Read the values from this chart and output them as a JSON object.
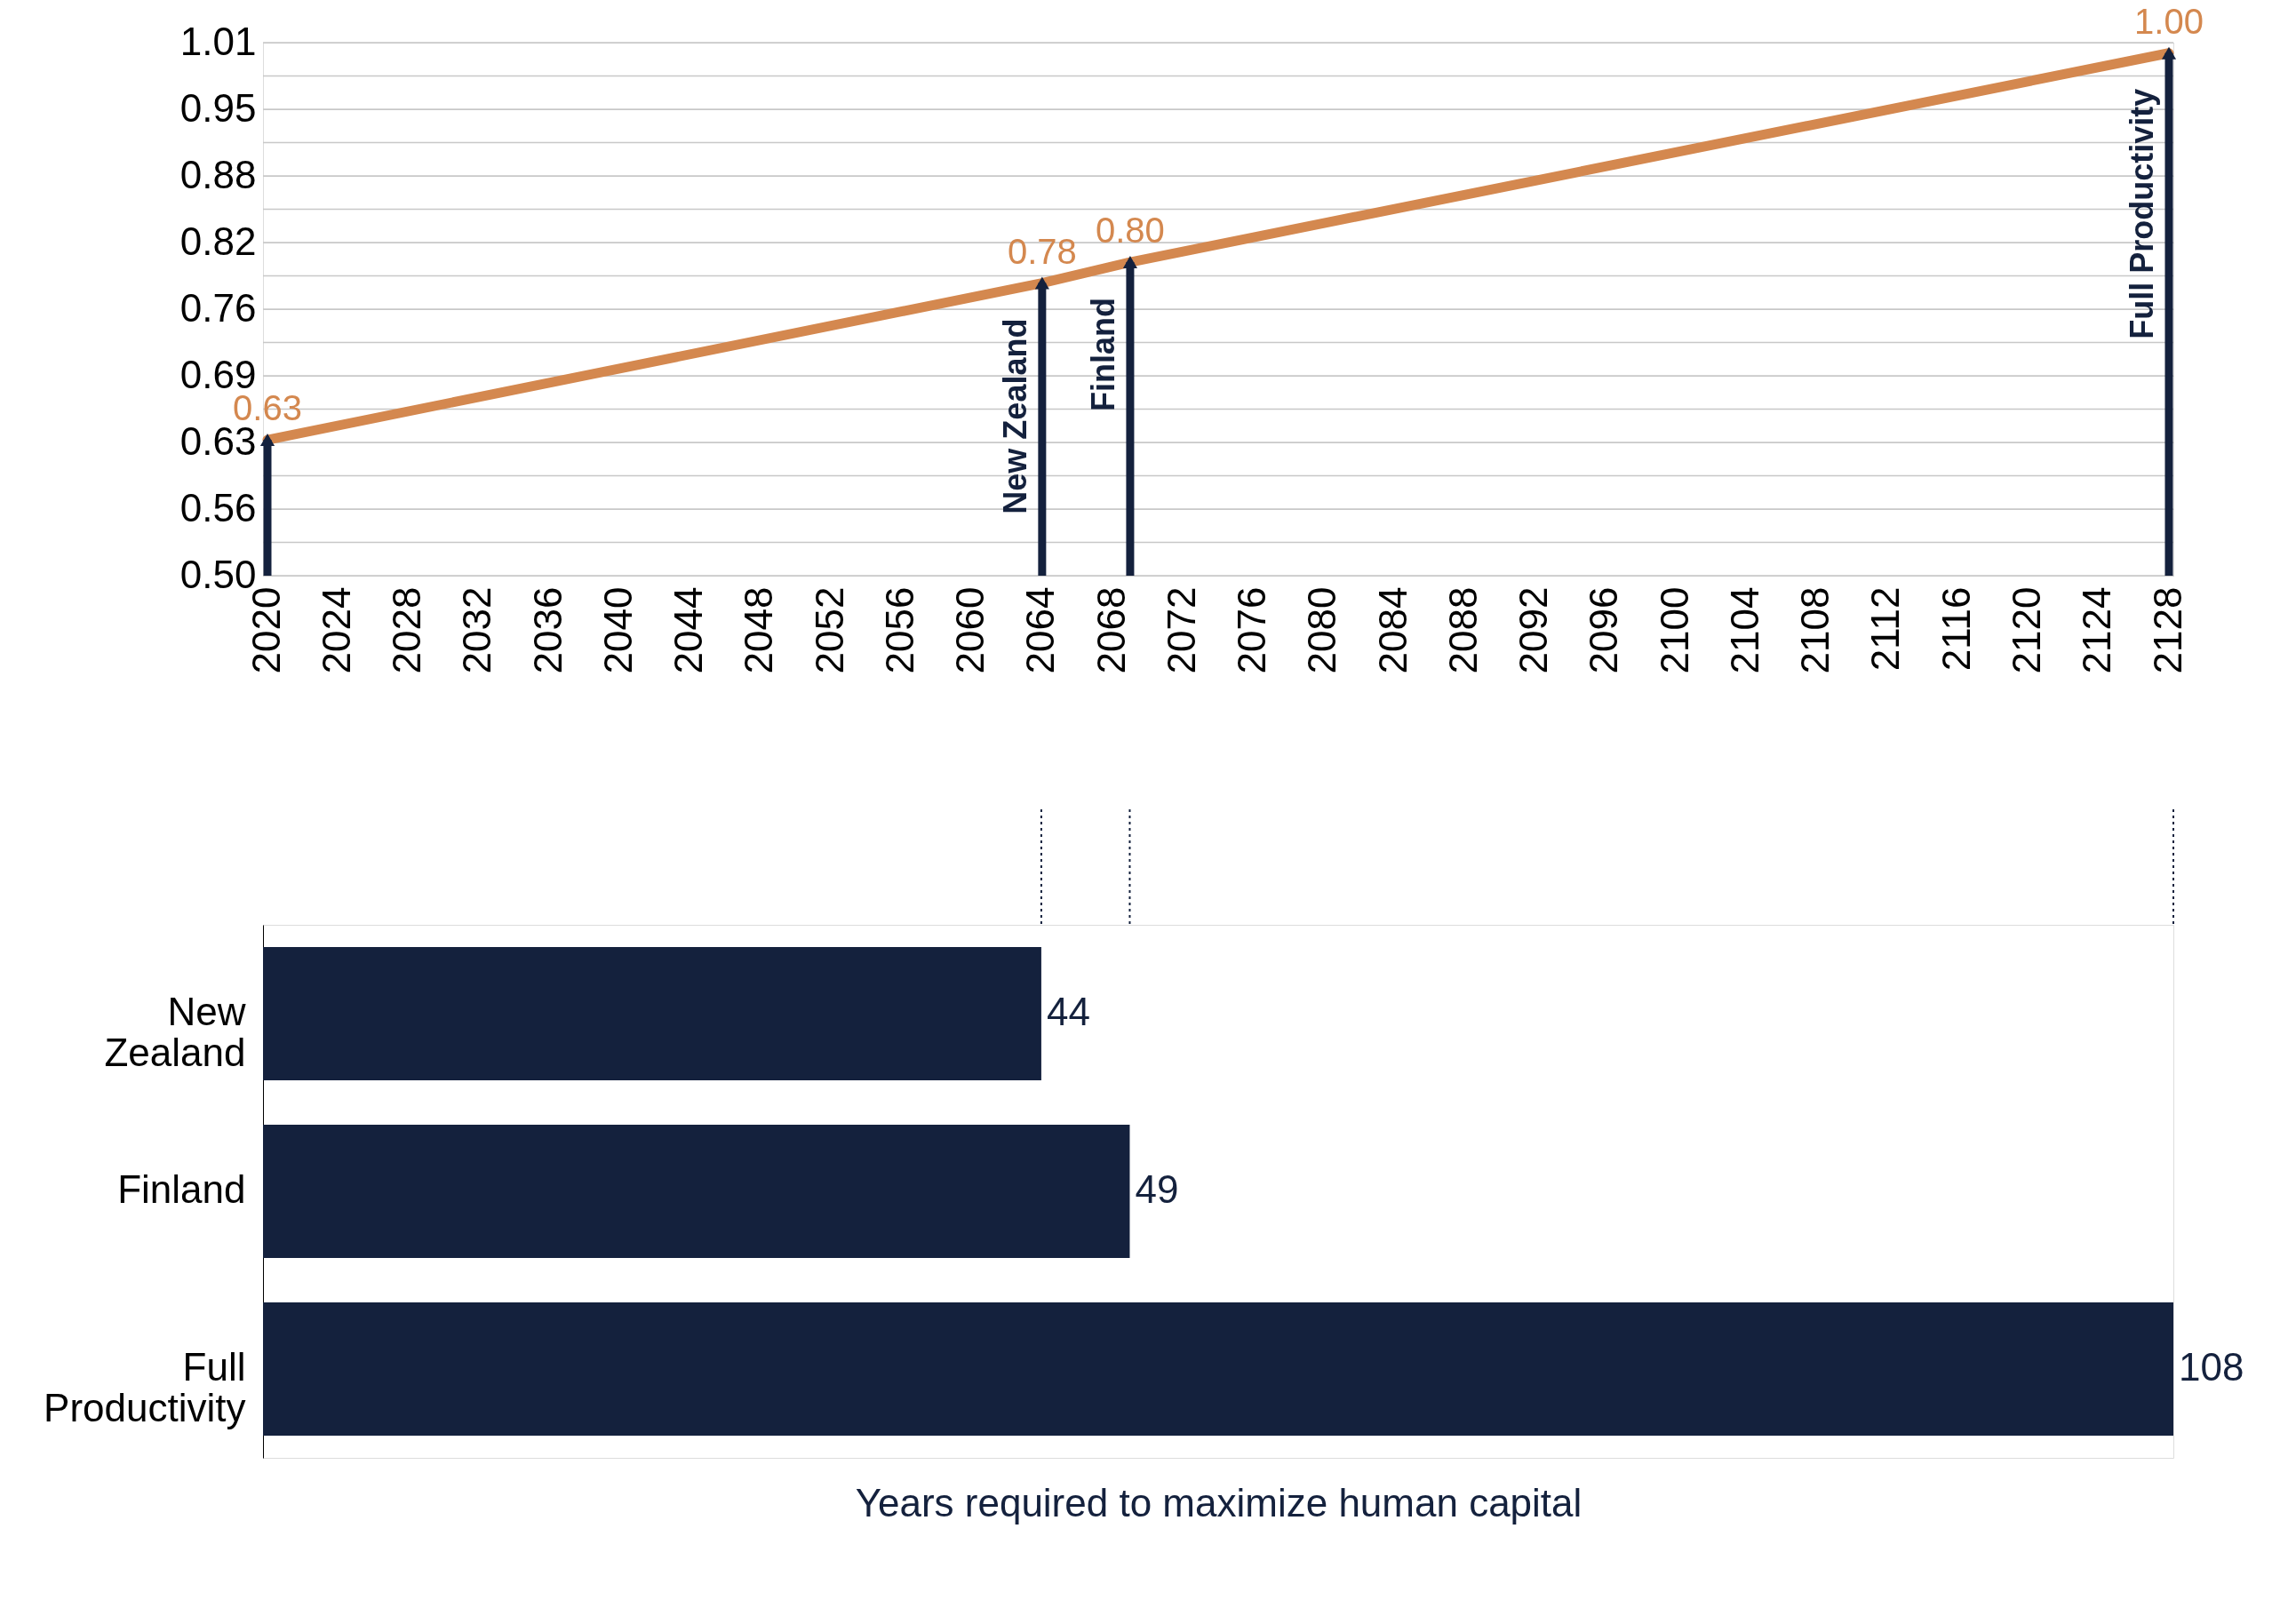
{
  "chart_data": [
    {
      "type": "line",
      "grid": "y",
      "xlim": [
        2020,
        2128
      ],
      "xticks": [
        2020,
        2024,
        2028,
        2032,
        2036,
        2040,
        2044,
        2048,
        2052,
        2056,
        2060,
        2064,
        2068,
        2072,
        2076,
        2080,
        2084,
        2088,
        2092,
        2096,
        2100,
        2104,
        2108,
        2112,
        2116,
        2120,
        2124,
        2128
      ],
      "ylim": [
        0.5,
        1.01
      ],
      "yticks": [
        {
          "value": 0.5,
          "label": "0.50"
        },
        {
          "value": 0.531875,
          "label": null
        },
        {
          "value": 0.56375,
          "label": "0.56"
        },
        {
          "value": 0.595625,
          "label": null
        },
        {
          "value": 0.6275,
          "label": "0.63"
        },
        {
          "value": 0.659375,
          "label": null
        },
        {
          "value": 0.69125,
          "label": "0.69"
        },
        {
          "value": 0.723125,
          "label": null
        },
        {
          "value": 0.755,
          "label": "0.76"
        },
        {
          "value": 0.786875,
          "label": null
        },
        {
          "value": 0.81875,
          "label": "0.82"
        },
        {
          "value": 0.850625,
          "label": null
        },
        {
          "value": 0.8825,
          "label": "0.88"
        },
        {
          "value": 0.914375,
          "label": null
        },
        {
          "value": 0.94625,
          "label": "0.95"
        },
        {
          "value": 0.978125,
          "label": null
        },
        {
          "value": 1.01,
          "label": "1.01"
        }
      ],
      "series": [
        {
          "type": "bar",
          "color": "#14213d",
          "x": [
            2020,
            2064,
            2069,
            2128
          ],
          "values": [
            0.63,
            0.78,
            0.8,
            1.0
          ]
        },
        {
          "type": "scatter",
          "color": "#14213d",
          "marker": "triangle",
          "x": [
            2020,
            2064,
            2069,
            2128
          ],
          "values": [
            0.63,
            0.78,
            0.8,
            1.0
          ]
        },
        {
          "type": "line",
          "color": "#d4884f",
          "x": [
            2020,
            2064,
            2069,
            2128
          ],
          "values": [
            0.63,
            0.78,
            0.8,
            1.0
          ],
          "value_labels": [
            "0.63",
            "0.78",
            "0.80",
            "1.00"
          ]
        }
      ],
      "annotations": [
        {
          "text": "New Zealand",
          "x": 2064,
          "y": 0.78
        },
        {
          "text": "Finland",
          "x": 2069,
          "y": 0.8
        },
        {
          "text": "Full Productivity",
          "x": 2128,
          "y": 1.0
        }
      ]
    },
    {
      "type": "bar",
      "orientation": "horizontal",
      "tick_labels": "y",
      "categories": [
        "New Zealand",
        "Finland",
        "Full Productivity"
      ],
      "values": [
        44,
        49,
        108
      ],
      "colors": [
        "#14213d",
        "#14213d",
        "#14213d"
      ],
      "xlim": [
        0,
        108
      ],
      "data_labels": true,
      "xlabel": "Years required to maximize human capital"
    }
  ]
}
